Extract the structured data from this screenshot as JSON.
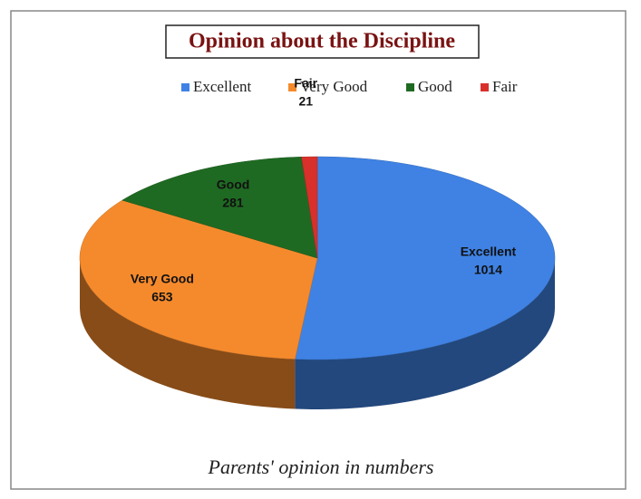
{
  "chart_data": {
    "type": "pie",
    "title": "Opinion about the Discipline",
    "caption": "Parents' opinion in numbers",
    "categories": [
      "Excellent",
      "Very Good",
      "Good",
      "Fair"
    ],
    "values": [
      1014,
      653,
      281,
      21
    ],
    "colors": [
      "#3f82e4",
      "#f58a2c",
      "#1f6a22",
      "#d8302a"
    ],
    "legend": "top"
  }
}
